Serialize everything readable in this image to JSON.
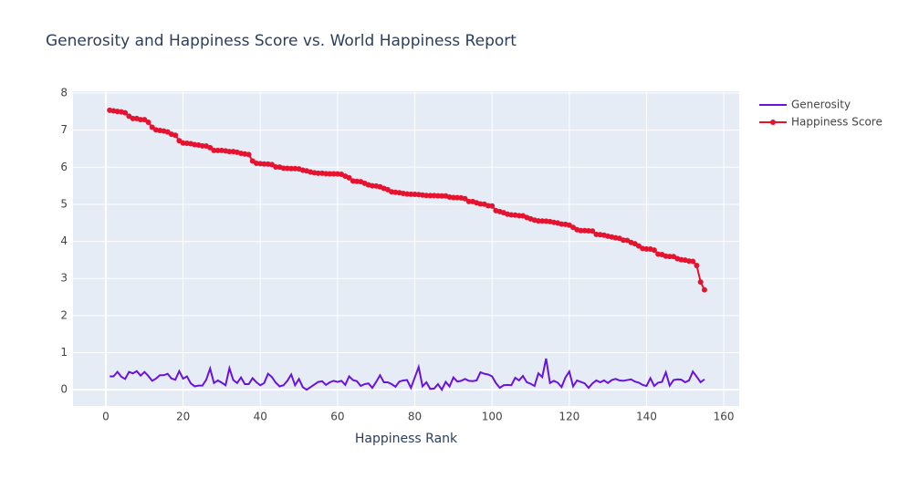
{
  "chart_data": {
    "type": "line",
    "title": "Generosity and Happiness Score vs. World Happiness Report",
    "x_label": "Happiness Rank",
    "x": [
      1,
      2,
      3,
      4,
      5,
      6,
      7,
      8,
      9,
      10,
      11,
      12,
      13,
      14,
      15,
      16,
      17,
      18,
      19,
      20,
      21,
      22,
      23,
      24,
      25,
      26,
      27,
      28,
      29,
      30,
      31,
      32,
      33,
      34,
      35,
      36,
      37,
      38,
      39,
      40,
      41,
      42,
      43,
      44,
      45,
      46,
      47,
      48,
      49,
      50,
      51,
      52,
      53,
      54,
      55,
      56,
      57,
      58,
      59,
      60,
      61,
      62,
      63,
      64,
      65,
      66,
      67,
      68,
      69,
      70,
      71,
      72,
      73,
      74,
      75,
      76,
      77,
      78,
      79,
      80,
      81,
      82,
      83,
      84,
      85,
      86,
      87,
      88,
      89,
      90,
      91,
      92,
      93,
      94,
      95,
      96,
      97,
      98,
      99,
      100,
      101,
      102,
      103,
      104,
      105,
      106,
      107,
      108,
      109,
      110,
      111,
      112,
      113,
      114,
      115,
      116,
      117,
      118,
      119,
      120,
      121,
      122,
      123,
      124,
      125,
      126,
      127,
      128,
      129,
      130,
      131,
      132,
      133,
      134,
      135,
      136,
      137,
      138,
      139,
      140,
      141,
      142,
      143,
      144,
      145,
      146,
      147,
      148,
      149,
      150,
      151,
      152,
      153,
      154,
      155
    ],
    "series": [
      {
        "name": "Generosity",
        "color": "#6a12de",
        "markers": false,
        "values": [
          0.36,
          0.36,
          0.48,
          0.35,
          0.29,
          0.48,
          0.44,
          0.5,
          0.38,
          0.48,
          0.37,
          0.24,
          0.3,
          0.39,
          0.39,
          0.43,
          0.3,
          0.27,
          0.5,
          0.3,
          0.36,
          0.17,
          0.09,
          0.11,
          0.11,
          0.27,
          0.57,
          0.18,
          0.25,
          0.19,
          0.12,
          0.58,
          0.26,
          0.18,
          0.33,
          0.15,
          0.15,
          0.31,
          0.2,
          0.12,
          0.18,
          0.43,
          0.34,
          0.19,
          0.09,
          0.12,
          0.24,
          0.41,
          0.12,
          0.29,
          0.07,
          0.0,
          0.07,
          0.14,
          0.21,
          0.23,
          0.13,
          0.2,
          0.24,
          0.21,
          0.24,
          0.13,
          0.36,
          0.26,
          0.23,
          0.1,
          0.15,
          0.17,
          0.05,
          0.21,
          0.39,
          0.2,
          0.2,
          0.15,
          0.08,
          0.22,
          0.25,
          0.26,
          0.05,
          0.33,
          0.61,
          0.09,
          0.2,
          0.02,
          0.03,
          0.15,
          0.0,
          0.21,
          0.09,
          0.33,
          0.22,
          0.24,
          0.29,
          0.24,
          0.23,
          0.25,
          0.47,
          0.43,
          0.41,
          0.36,
          0.18,
          0.05,
          0.12,
          0.13,
          0.12,
          0.32,
          0.25,
          0.37,
          0.2,
          0.16,
          0.1,
          0.44,
          0.34,
          0.84,
          0.18,
          0.24,
          0.19,
          0.07,
          0.33,
          0.49,
          0.09,
          0.25,
          0.21,
          0.17,
          0.05,
          0.17,
          0.25,
          0.2,
          0.25,
          0.18,
          0.26,
          0.29,
          0.25,
          0.24,
          0.26,
          0.28,
          0.22,
          0.19,
          0.13,
          0.1,
          0.31,
          0.1,
          0.19,
          0.21,
          0.47,
          0.11,
          0.26,
          0.28,
          0.27,
          0.2,
          0.25,
          0.49,
          0.35,
          0.2,
          0.28
        ]
      },
      {
        "name": "Happiness Score",
        "color": "#e5132f",
        "markers": true,
        "values": [
          7.537,
          7.522,
          7.504,
          7.494,
          7.469,
          7.377,
          7.316,
          7.314,
          7.284,
          7.284,
          7.213,
          7.079,
          7.006,
          6.993,
          6.977,
          6.951,
          6.891,
          6.863,
          6.714,
          6.652,
          6.648,
          6.635,
          6.609,
          6.599,
          6.578,
          6.572,
          6.527,
          6.454,
          6.454,
          6.452,
          6.442,
          6.424,
          6.422,
          6.403,
          6.375,
          6.357,
          6.344,
          6.168,
          6.105,
          6.098,
          6.087,
          6.084,
          6.071,
          6.008,
          6.003,
          5.973,
          5.971,
          5.964,
          5.963,
          5.956,
          5.92,
          5.902,
          5.872,
          5.85,
          5.838,
          5.838,
          5.825,
          5.823,
          5.822,
          5.819,
          5.81,
          5.758,
          5.715,
          5.629,
          5.621,
          5.611,
          5.569,
          5.525,
          5.5,
          5.493,
          5.472,
          5.43,
          5.395,
          5.336,
          5.324,
          5.311,
          5.293,
          5.279,
          5.273,
          5.269,
          5.262,
          5.25,
          5.237,
          5.235,
          5.234,
          5.23,
          5.227,
          5.225,
          5.195,
          5.182,
          5.181,
          5.175,
          5.151,
          5.074,
          5.074,
          5.041,
          5.011,
          5.004,
          4.962,
          4.955,
          4.829,
          4.805,
          4.775,
          4.735,
          4.714,
          4.709,
          4.695,
          4.692,
          4.644,
          4.608,
          4.574,
          4.553,
          4.55,
          4.545,
          4.535,
          4.514,
          4.497,
          4.465,
          4.46,
          4.44,
          4.376,
          4.315,
          4.292,
          4.291,
          4.286,
          4.28,
          4.19,
          4.18,
          4.168,
          4.139,
          4.12,
          4.096,
          4.081,
          4.032,
          4.028,
          3.97,
          3.936,
          3.875,
          3.808,
          3.795,
          3.794,
          3.766,
          3.657,
          3.644,
          3.603,
          3.593,
          3.591,
          3.533,
          3.507,
          3.495,
          3.471,
          3.462,
          3.349,
          2.905,
          2.693
        ]
      }
    ],
    "xlim": [
      -8.5,
      164
    ],
    "xticks": [
      0,
      20,
      40,
      60,
      80,
      100,
      120,
      140,
      160
    ],
    "ylim": [
      -0.44,
      8.05
    ],
    "yticks": [
      0,
      1,
      2,
      3,
      4,
      5,
      6,
      7,
      8
    ],
    "grid": true,
    "legend_position": "right"
  }
}
